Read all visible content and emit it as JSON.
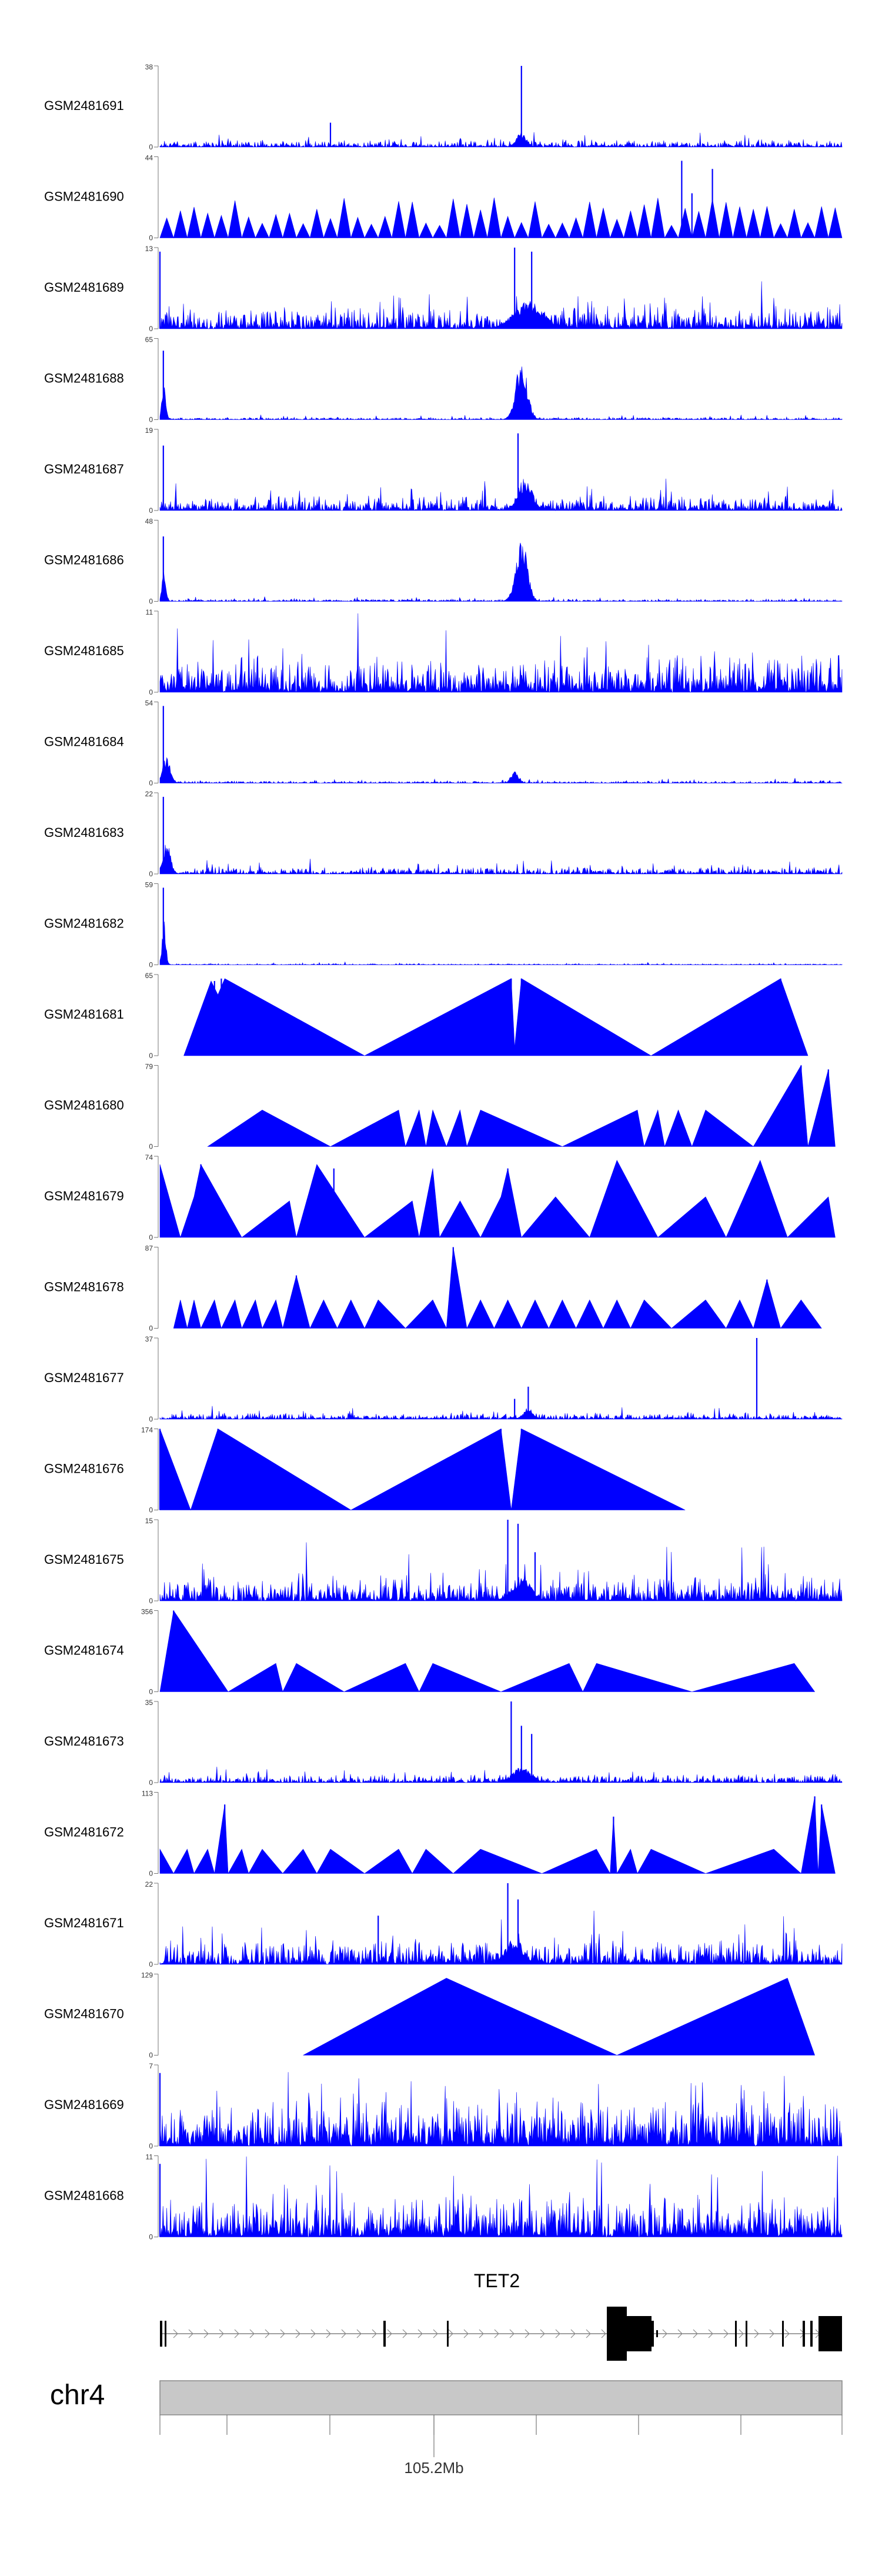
{
  "chart_data": {
    "type": "area",
    "title": "",
    "x_range_label": "105.2Mb",
    "chromosome": "chr4",
    "gene_name": "TET2",
    "track_color": "#0000ff",
    "tracks": [
      {
        "name": "GSM2481691",
        "ymax": 38,
        "style": "dense",
        "seed": 101,
        "level": 0.06,
        "spikes": [
          [
            0.53,
            1.0
          ],
          [
            0.25,
            0.3
          ]
        ],
        "bumps": [
          [
            0.53,
            0.2,
            0.01
          ]
        ]
      },
      {
        "name": "GSM2481690",
        "ymax": 44,
        "style": "tri",
        "seed": 102,
        "level": 0.15,
        "spikes": [
          [
            0.765,
            0.95
          ],
          [
            0.81,
            0.85
          ],
          [
            0.78,
            0.55
          ]
        ],
        "bumps": []
      },
      {
        "name": "GSM2481689",
        "ymax": 13,
        "style": "dense",
        "seed": 103,
        "level": 0.18,
        "spikes": [
          [
            0.0,
            0.95
          ],
          [
            0.52,
            1.0
          ],
          [
            0.545,
            0.95
          ]
        ],
        "bumps": [
          [
            0.54,
            0.35,
            0.03
          ]
        ]
      },
      {
        "name": "GSM2481688",
        "ymax": 65,
        "style": "dense",
        "seed": 104,
        "level": 0.02,
        "spikes": [
          [
            0.005,
            0.85
          ]
        ],
        "bumps": [
          [
            0.53,
            0.75,
            0.012
          ],
          [
            0.006,
            0.5,
            0.004
          ]
        ]
      },
      {
        "name": "GSM2481687",
        "ymax": 19,
        "style": "dense",
        "seed": 105,
        "level": 0.12,
        "spikes": [
          [
            0.005,
            0.8
          ],
          [
            0.525,
            0.95
          ]
        ],
        "bumps": [
          [
            0.535,
            0.4,
            0.015
          ]
        ]
      },
      {
        "name": "GSM2481686",
        "ymax": 48,
        "style": "dense",
        "seed": 106,
        "level": 0.02,
        "spikes": [
          [
            0.005,
            0.8
          ]
        ],
        "bumps": [
          [
            0.53,
            0.8,
            0.012
          ],
          [
            0.006,
            0.45,
            0.004
          ]
        ]
      },
      {
        "name": "GSM2481685",
        "ymax": 11,
        "style": "dense",
        "seed": 107,
        "level": 0.3,
        "spikes": [],
        "bumps": []
      },
      {
        "name": "GSM2481684",
        "ymax": 54,
        "style": "dense",
        "seed": 108,
        "level": 0.02,
        "spikes": [
          [
            0.005,
            0.95
          ]
        ],
        "bumps": [
          [
            0.01,
            0.35,
            0.008
          ],
          [
            0.52,
            0.15,
            0.008
          ]
        ]
      },
      {
        "name": "GSM2481683",
        "ymax": 22,
        "style": "dense",
        "seed": 109,
        "level": 0.06,
        "spikes": [
          [
            0.005,
            0.95
          ]
        ],
        "bumps": [
          [
            0.01,
            0.4,
            0.008
          ]
        ]
      },
      {
        "name": "GSM2481682",
        "ymax": 59,
        "style": "dense",
        "seed": 110,
        "level": 0.01,
        "spikes": [
          [
            0.005,
            0.95
          ]
        ],
        "bumps": [
          [
            0.006,
            0.55,
            0.004
          ]
        ]
      },
      {
        "name": "GSM2481681",
        "ymax": 65,
        "style": "tri",
        "seed": 111,
        "level": 0,
        "spikes": [
          [
            0.08,
            0.92
          ],
          [
            0.09,
            0.95
          ],
          [
            0.515,
            0.95
          ],
          [
            0.53,
            0.95
          ],
          [
            0.91,
            0.95
          ]
        ],
        "peaks": [
          [
            0.035,
            0
          ],
          [
            0.075,
            0.92
          ],
          [
            0.085,
            0.75
          ],
          [
            0.095,
            0.95
          ],
          [
            0.3,
            0
          ],
          [
            0.515,
            0.95
          ],
          [
            0.52,
            0.1
          ],
          [
            0.53,
            0.95
          ],
          [
            0.72,
            0
          ],
          [
            0.91,
            0.95
          ],
          [
            0.95,
            0
          ]
        ]
      },
      {
        "name": "GSM2481680",
        "ymax": 79,
        "style": "tri",
        "seed": 112,
        "level": 0,
        "spikes": [
          [
            0.94,
            1.0
          ],
          [
            0.98,
            0.95
          ]
        ],
        "peaks": [
          [
            0.07,
            0
          ],
          [
            0.15,
            0.45
          ],
          [
            0.25,
            0
          ],
          [
            0.35,
            0.45
          ],
          [
            0.36,
            0
          ],
          [
            0.38,
            0.45
          ],
          [
            0.39,
            0
          ],
          [
            0.4,
            0.45
          ],
          [
            0.42,
            0
          ],
          [
            0.44,
            0.45
          ],
          [
            0.45,
            0
          ],
          [
            0.47,
            0.45
          ],
          [
            0.59,
            0
          ],
          [
            0.7,
            0.45
          ],
          [
            0.71,
            0
          ],
          [
            0.73,
            0.45
          ],
          [
            0.74,
            0
          ],
          [
            0.76,
            0.45
          ],
          [
            0.78,
            0
          ],
          [
            0.8,
            0.45
          ],
          [
            0.87,
            0
          ],
          [
            0.94,
            1.0
          ],
          [
            0.95,
            0
          ],
          [
            0.98,
            0.95
          ],
          [
            0.99,
            0
          ]
        ]
      },
      {
        "name": "GSM2481679",
        "ymax": 74,
        "style": "tri",
        "seed": 113,
        "level": 0,
        "spikes": [
          [
            0.06,
            0.9
          ],
          [
            0.255,
            0.85
          ],
          [
            0.51,
            0.85
          ]
        ],
        "peaks": [
          [
            0.0,
            0.9
          ],
          [
            0.03,
            0
          ],
          [
            0.05,
            0.5
          ],
          [
            0.06,
            0.9
          ],
          [
            0.12,
            0
          ],
          [
            0.19,
            0.45
          ],
          [
            0.2,
            0
          ],
          [
            0.23,
            0.9
          ],
          [
            0.3,
            0
          ],
          [
            0.37,
            0.45
          ],
          [
            0.38,
            0
          ],
          [
            0.4,
            0.85
          ],
          [
            0.41,
            0
          ],
          [
            0.44,
            0.45
          ],
          [
            0.47,
            0
          ],
          [
            0.5,
            0.5
          ],
          [
            0.51,
            0.85
          ],
          [
            0.53,
            0
          ],
          [
            0.58,
            0.5
          ],
          [
            0.63,
            0
          ],
          [
            0.67,
            0.95
          ],
          [
            0.73,
            0
          ],
          [
            0.8,
            0.5
          ],
          [
            0.83,
            0
          ],
          [
            0.88,
            0.95
          ],
          [
            0.92,
            0
          ],
          [
            0.98,
            0.5
          ],
          [
            0.99,
            0
          ]
        ]
      },
      {
        "name": "GSM2481678",
        "ymax": 87,
        "style": "tri",
        "seed": 114,
        "level": 0,
        "spikes": [
          [
            0.2,
            0.65
          ],
          [
            0.43,
            1.0
          ],
          [
            0.89,
            0.6
          ]
        ],
        "peaks": [
          [
            0.02,
            0
          ],
          [
            0.03,
            0.35
          ],
          [
            0.04,
            0
          ],
          [
            0.05,
            0.35
          ],
          [
            0.06,
            0
          ],
          [
            0.08,
            0.35
          ],
          [
            0.09,
            0
          ],
          [
            0.11,
            0.35
          ],
          [
            0.12,
            0
          ],
          [
            0.14,
            0.35
          ],
          [
            0.15,
            0
          ],
          [
            0.17,
            0.35
          ],
          [
            0.18,
            0
          ],
          [
            0.2,
            0.65
          ],
          [
            0.22,
            0
          ],
          [
            0.24,
            0.35
          ],
          [
            0.26,
            0
          ],
          [
            0.28,
            0.35
          ],
          [
            0.3,
            0
          ],
          [
            0.32,
            0.35
          ],
          [
            0.36,
            0
          ],
          [
            0.4,
            0.35
          ],
          [
            0.42,
            0
          ],
          [
            0.43,
            1.0
          ],
          [
            0.45,
            0
          ],
          [
            0.47,
            0.35
          ],
          [
            0.49,
            0
          ],
          [
            0.51,
            0.35
          ],
          [
            0.53,
            0
          ],
          [
            0.55,
            0.35
          ],
          [
            0.57,
            0
          ],
          [
            0.59,
            0.35
          ],
          [
            0.61,
            0
          ],
          [
            0.63,
            0.35
          ],
          [
            0.65,
            0
          ],
          [
            0.67,
            0.35
          ],
          [
            0.69,
            0
          ],
          [
            0.71,
            0.35
          ],
          [
            0.75,
            0
          ],
          [
            0.8,
            0.35
          ],
          [
            0.83,
            0
          ],
          [
            0.85,
            0.35
          ],
          [
            0.87,
            0
          ],
          [
            0.89,
            0.6
          ],
          [
            0.91,
            0
          ],
          [
            0.94,
            0.35
          ],
          [
            0.97,
            0
          ]
        ]
      },
      {
        "name": "GSM2481677",
        "ymax": 37,
        "style": "dense",
        "seed": 115,
        "level": 0.05,
        "spikes": [
          [
            0.875,
            1.0
          ],
          [
            0.54,
            0.4
          ],
          [
            0.52,
            0.25
          ]
        ],
        "bumps": [
          [
            0.54,
            0.15,
            0.01
          ]
        ]
      },
      {
        "name": "GSM2481676",
        "ymax": 174,
        "style": "tri",
        "seed": 116,
        "level": 0,
        "spikes": [
          [
            0.0,
            1.0
          ],
          [
            0.085,
            1.0
          ],
          [
            0.5,
            1.0
          ],
          [
            0.53,
            1.0
          ]
        ],
        "peaks": [
          [
            0.0,
            1.0
          ],
          [
            0.045,
            0
          ],
          [
            0.085,
            1.0
          ],
          [
            0.28,
            0
          ],
          [
            0.5,
            1.0
          ],
          [
            0.515,
            0
          ],
          [
            0.53,
            1.0
          ],
          [
            0.77,
            0
          ]
        ]
      },
      {
        "name": "GSM2481675",
        "ymax": 15,
        "style": "dense",
        "seed": 117,
        "level": 0.2,
        "spikes": [
          [
            0.51,
            1.0
          ],
          [
            0.525,
            0.95
          ],
          [
            0.55,
            0.6
          ]
        ],
        "bumps": [
          [
            0.53,
            0.3,
            0.02
          ]
        ]
      },
      {
        "name": "GSM2481674",
        "ymax": 356,
        "style": "tri",
        "seed": 118,
        "level": 0,
        "spikes": [
          [
            0.02,
            1.0
          ]
        ],
        "peaks": [
          [
            0.0,
            0
          ],
          [
            0.02,
            1.0
          ],
          [
            0.1,
            0
          ],
          [
            0.17,
            0.35
          ],
          [
            0.18,
            0
          ],
          [
            0.2,
            0.35
          ],
          [
            0.27,
            0
          ],
          [
            0.36,
            0.35
          ],
          [
            0.38,
            0
          ],
          [
            0.4,
            0.35
          ],
          [
            0.5,
            0
          ],
          [
            0.6,
            0.35
          ],
          [
            0.62,
            0
          ],
          [
            0.64,
            0.35
          ],
          [
            0.78,
            0
          ],
          [
            0.93,
            0.35
          ],
          [
            0.96,
            0
          ]
        ]
      },
      {
        "name": "GSM2481673",
        "ymax": 35,
        "style": "dense",
        "seed": 119,
        "level": 0.07,
        "spikes": [
          [
            0.515,
            1.0
          ],
          [
            0.53,
            0.7
          ],
          [
            0.545,
            0.6
          ]
        ],
        "bumps": [
          [
            0.53,
            0.2,
            0.02
          ]
        ]
      },
      {
        "name": "GSM2481672",
        "ymax": 113,
        "style": "tri",
        "seed": 120,
        "level": 0,
        "spikes": [
          [
            0.095,
            0.85
          ],
          [
            0.665,
            0.7
          ],
          [
            0.96,
            0.95
          ],
          [
            0.97,
            0.85
          ]
        ],
        "peaks": [
          [
            0.0,
            0.3
          ],
          [
            0.02,
            0
          ],
          [
            0.04,
            0.3
          ],
          [
            0.05,
            0
          ],
          [
            0.07,
            0.3
          ],
          [
            0.08,
            0
          ],
          [
            0.095,
            0.85
          ],
          [
            0.1,
            0
          ],
          [
            0.12,
            0.3
          ],
          [
            0.13,
            0
          ],
          [
            0.15,
            0.3
          ],
          [
            0.18,
            0
          ],
          [
            0.21,
            0.3
          ],
          [
            0.23,
            0
          ],
          [
            0.25,
            0.3
          ],
          [
            0.3,
            0
          ],
          [
            0.35,
            0.3
          ],
          [
            0.37,
            0
          ],
          [
            0.39,
            0.3
          ],
          [
            0.43,
            0
          ],
          [
            0.47,
            0.3
          ],
          [
            0.56,
            0
          ],
          [
            0.64,
            0.3
          ],
          [
            0.66,
            0
          ],
          [
            0.665,
            0.7
          ],
          [
            0.67,
            0
          ],
          [
            0.69,
            0.3
          ],
          [
            0.7,
            0
          ],
          [
            0.72,
            0.3
          ],
          [
            0.8,
            0
          ],
          [
            0.9,
            0.3
          ],
          [
            0.94,
            0
          ],
          [
            0.96,
            0.95
          ],
          [
            0.965,
            0
          ],
          [
            0.97,
            0.85
          ],
          [
            0.99,
            0
          ]
        ]
      },
      {
        "name": "GSM2481671",
        "ymax": 22,
        "style": "dense",
        "seed": 121,
        "level": 0.2,
        "spikes": [
          [
            0.51,
            1.0
          ],
          [
            0.525,
            0.8
          ],
          [
            0.32,
            0.6
          ]
        ],
        "bumps": [
          [
            0.52,
            0.3,
            0.02
          ]
        ]
      },
      {
        "name": "GSM2481670",
        "ymax": 129,
        "style": "tri",
        "seed": 122,
        "level": 0,
        "spikes": [],
        "peaks": [
          [
            0.21,
            0
          ],
          [
            0.42,
            0.95
          ],
          [
            0.67,
            0
          ],
          [
            0.92,
            0.95
          ],
          [
            0.96,
            0
          ]
        ]
      },
      {
        "name": "GSM2481669",
        "ymax": 7,
        "style": "dense",
        "seed": 123,
        "level": 0.4,
        "spikes": [
          [
            0.0,
            0.9
          ]
        ],
        "bumps": []
      },
      {
        "name": "GSM2481668",
        "ymax": 11,
        "style": "dense",
        "seed": 124,
        "level": 0.35,
        "spikes": [
          [
            0.0,
            0.9
          ]
        ],
        "bumps": []
      }
    ]
  }
}
